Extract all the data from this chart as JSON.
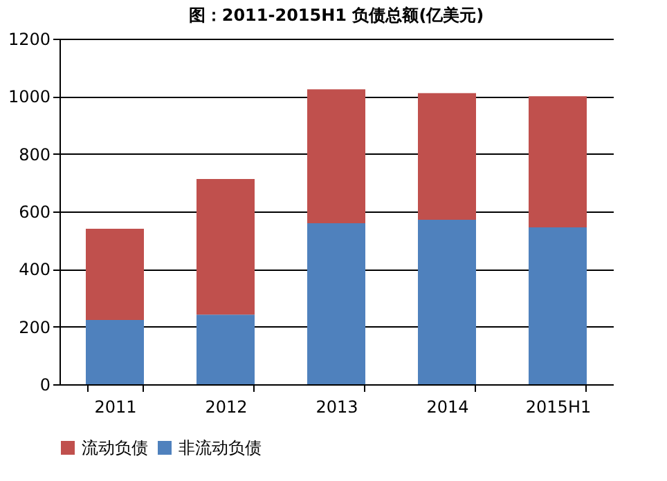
{
  "chart_data": {
    "type": "bar",
    "title": "图：2011-2015H1 负债总额(亿美元)",
    "categories": [
      "2011",
      "2012",
      "2013",
      "2014",
      "2015H1"
    ],
    "stacked": true,
    "series": [
      {
        "name": "非流动负债",
        "color": "#4f81bd",
        "values": [
          223,
          242,
          559,
          571,
          545
        ]
      },
      {
        "name": "流动负债",
        "color": "#c0504d",
        "values": [
          317,
          471,
          465,
          440,
          455
        ]
      }
    ],
    "ylim": [
      0,
      1200
    ],
    "yticks": [
      0,
      200,
      400,
      600,
      800,
      1000,
      1200
    ],
    "grid": "y",
    "legend": "bottom"
  }
}
